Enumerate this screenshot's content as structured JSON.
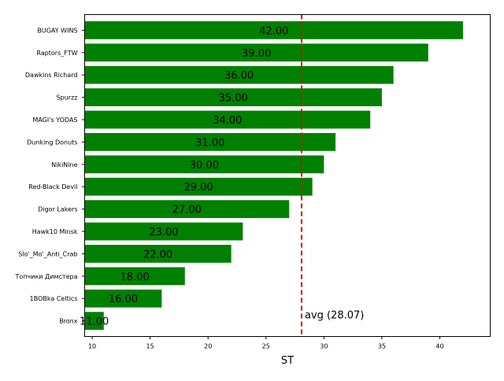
{
  "chart_data": {
    "type": "bar",
    "orientation": "horizontal",
    "categories": [
      "BUGAY WINS",
      "Raptors_FTW",
      "Dawkins Richard",
      "Spurzz",
      "MAGI's YODAS",
      "Dunking Donuts",
      "NikiNine",
      "Red-Black Devil",
      "Digor Lakers",
      "Hawk10 Minsk",
      "Slo'_Mo'_Anti_Crab",
      "Топчики Димстера",
      "1BOBka Celtics",
      "Bronx"
    ],
    "values": [
      42,
      39,
      36,
      35,
      34,
      31,
      30,
      29,
      27,
      23,
      22,
      18,
      16,
      11
    ],
    "value_labels": [
      "42.00",
      "39.00",
      "36.00",
      "35.00",
      "34.00",
      "31.00",
      "30.00",
      "29.00",
      "27.00",
      "23.00",
      "22.00",
      "18.00",
      "16.00",
      "11.00"
    ],
    "xlabel": "ST",
    "ylabel": "",
    "title": "",
    "xlim": [
      9.35,
      44.35
    ],
    "xticks": [
      10,
      15,
      20,
      25,
      30,
      35,
      40
    ],
    "bar_color": "#008000",
    "grid": false,
    "reference_line": {
      "value": 28.07,
      "label": "avg (28.07)",
      "color": "#e00000",
      "style": "dashed"
    }
  }
}
